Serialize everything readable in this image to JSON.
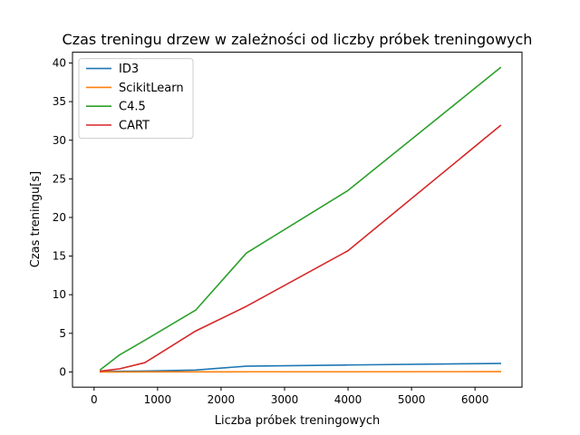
{
  "chart_data": {
    "type": "line",
    "title": "Czas treningu drzew w zależności od liczby próbek treningowych",
    "xlabel": "Liczba próbek treningowych",
    "ylabel": "Czas treningu[s]",
    "xlim": [
      -340,
      6740
    ],
    "ylim": [
      -1.97,
      41.4
    ],
    "xticks": [
      0,
      1000,
      2000,
      3000,
      4000,
      5000,
      6000
    ],
    "yticks": [
      0,
      5,
      10,
      15,
      20,
      25,
      30,
      35,
      40
    ],
    "grid": false,
    "legend_position": "top-left",
    "series": [
      {
        "name": "ID3",
        "color": "#1f77b4",
        "x": [
          100,
          400,
          800,
          1600,
          2400,
          4000,
          6400
        ],
        "y": [
          0.05,
          0.08,
          0.12,
          0.25,
          0.75,
          0.9,
          1.1
        ]
      },
      {
        "name": "ScikitLearn",
        "color": "#ff7f0e",
        "x": [
          100,
          400,
          800,
          1600,
          2400,
          4000,
          6400
        ],
        "y": [
          0.0,
          0.0,
          0.01,
          0.01,
          0.02,
          0.02,
          0.04
        ]
      },
      {
        "name": "C4.5",
        "color": "#2ca02c",
        "x": [
          100,
          400,
          800,
          1600,
          2400,
          4000,
          6400
        ],
        "y": [
          0.3,
          2.2,
          4.1,
          8.0,
          15.4,
          23.5,
          39.4
        ]
      },
      {
        "name": "CART",
        "color": "#d62728",
        "x": [
          100,
          400,
          800,
          1600,
          2400,
          4000,
          6400
        ],
        "y": [
          0.1,
          0.4,
          1.2,
          5.3,
          8.5,
          15.7,
          31.9
        ]
      }
    ]
  }
}
